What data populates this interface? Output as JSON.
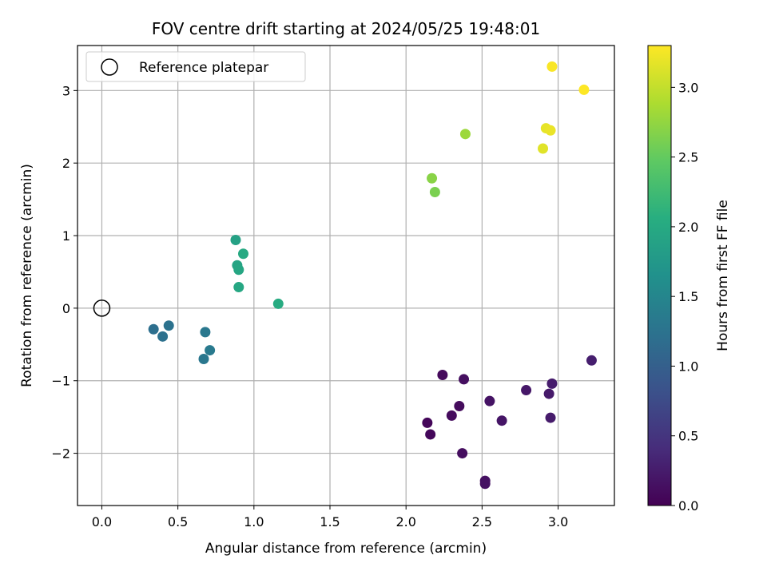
{
  "chart_data": {
    "type": "scatter",
    "title": "FOV centre drift starting at 2024/05/25 19:48:01",
    "xlabel": "Angular distance from reference (arcmin)",
    "ylabel": "Rotation from reference (arcmin)",
    "xlim": [
      -0.16,
      3.37
    ],
    "ylim": [
      -2.72,
      3.62
    ],
    "xticks": [
      0.0,
      0.5,
      1.0,
      1.5,
      2.0,
      2.5,
      3.0
    ],
    "xtick_labels": [
      "0.0",
      "0.5",
      "1.0",
      "1.5",
      "2.0",
      "2.5",
      "3.0"
    ],
    "yticks": [
      -2,
      -1,
      0,
      1,
      2,
      3
    ],
    "ytick_labels": [
      "−2",
      "−1",
      "0",
      "1",
      "2",
      "3"
    ],
    "grid": true,
    "legend": {
      "position": "top-left",
      "entries": [
        "Reference platepar"
      ]
    },
    "reference_point": {
      "x": 0.0,
      "y": 0.0
    },
    "colorbar": {
      "label": "Hours from first FF file",
      "colormap": "viridis",
      "range": [
        0.0,
        3.3
      ],
      "ticks": [
        0.0,
        0.5,
        1.0,
        1.5,
        2.0,
        2.5,
        3.0
      ],
      "tick_labels": [
        "0.0",
        "0.5",
        "1.0",
        "1.5",
        "2.0",
        "2.5",
        "3.0"
      ]
    },
    "points": [
      {
        "x": 2.14,
        "y": -1.58,
        "t": 0.05
      },
      {
        "x": 2.16,
        "y": -1.74,
        "t": 0.06
      },
      {
        "x": 2.24,
        "y": -0.92,
        "t": 0.08
      },
      {
        "x": 2.3,
        "y": -1.48,
        "t": 0.09
      },
      {
        "x": 2.35,
        "y": -1.35,
        "t": 0.1
      },
      {
        "x": 2.37,
        "y": -2.0,
        "t": 0.12
      },
      {
        "x": 2.38,
        "y": -0.98,
        "t": 0.13
      },
      {
        "x": 2.52,
        "y": -2.38,
        "t": 0.14
      },
      {
        "x": 2.52,
        "y": -2.42,
        "t": 0.15
      },
      {
        "x": 2.55,
        "y": -1.28,
        "t": 0.17
      },
      {
        "x": 2.63,
        "y": -1.55,
        "t": 0.19
      },
      {
        "x": 2.79,
        "y": -1.13,
        "t": 0.21
      },
      {
        "x": 2.94,
        "y": -1.18,
        "t": 0.23
      },
      {
        "x": 2.95,
        "y": -1.51,
        "t": 0.24
      },
      {
        "x": 2.96,
        "y": -1.04,
        "t": 0.25
      },
      {
        "x": 3.22,
        "y": -0.72,
        "t": 0.27
      },
      {
        "x": 0.34,
        "y": -0.29,
        "t": 1.2
      },
      {
        "x": 0.4,
        "y": -0.39,
        "t": 1.22
      },
      {
        "x": 0.44,
        "y": -0.24,
        "t": 1.24
      },
      {
        "x": 0.67,
        "y": -0.7,
        "t": 1.3
      },
      {
        "x": 0.68,
        "y": -0.33,
        "t": 1.32
      },
      {
        "x": 0.71,
        "y": -0.58,
        "t": 1.34
      },
      {
        "x": 0.88,
        "y": 0.94,
        "t": 1.88
      },
      {
        "x": 0.89,
        "y": 0.59,
        "t": 1.92
      },
      {
        "x": 0.9,
        "y": 0.53,
        "t": 1.95
      },
      {
        "x": 0.9,
        "y": 0.29,
        "t": 1.97
      },
      {
        "x": 0.93,
        "y": 0.75,
        "t": 1.99
      },
      {
        "x": 1.16,
        "y": 0.06,
        "t": 2.02
      },
      {
        "x": 2.17,
        "y": 1.79,
        "t": 2.7
      },
      {
        "x": 2.19,
        "y": 1.6,
        "t": 2.62
      },
      {
        "x": 2.39,
        "y": 2.4,
        "t": 2.8
      },
      {
        "x": 2.9,
        "y": 2.2,
        "t": 3.15
      },
      {
        "x": 2.92,
        "y": 2.48,
        "t": 3.18
      },
      {
        "x": 2.95,
        "y": 2.45,
        "t": 3.2
      },
      {
        "x": 2.96,
        "y": 3.33,
        "t": 3.28
      },
      {
        "x": 3.17,
        "y": 3.01,
        "t": 3.3
      }
    ]
  }
}
